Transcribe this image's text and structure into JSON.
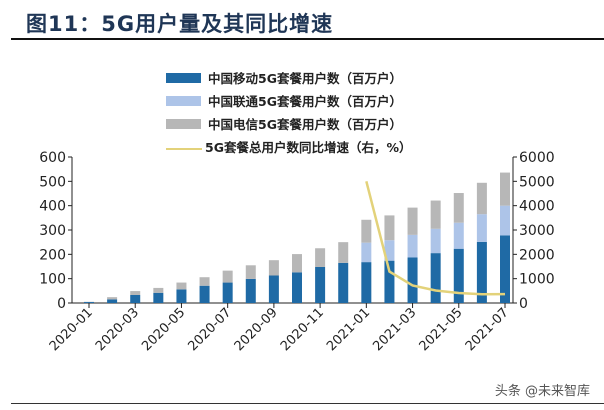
{
  "title": "图11：5G用户量及其同比增速",
  "watermark": "头条 @未来智库",
  "chart_data": {
    "type": "bar",
    "stacked": true,
    "categories": [
      "2020-01",
      "2020-02",
      "2020-03",
      "2020-04",
      "2020-05",
      "2020-06",
      "2020-07",
      "2020-08",
      "2020-09",
      "2020-10",
      "2020-11",
      "2020-12",
      "2021-01",
      "2021-02",
      "2021-03",
      "2021-04",
      "2021-05",
      "2021-06",
      "2021-07"
    ],
    "x_tick_labels": [
      "2020-01",
      "2020-03",
      "2020-05",
      "2020-07",
      "2020-09",
      "2020-11",
      "2021-01",
      "2021-03",
      "2021-05",
      "2021-07"
    ],
    "series": [
      {
        "name": "中国移动5G套餐用户数（百万户）",
        "color": "#1f6aa5",
        "axis": "left",
        "values": [
          4,
          15,
          33,
          42,
          56,
          71,
          84,
          99,
          113,
          126,
          148,
          165,
          168,
          174,
          187,
          205,
          223,
          251,
          278
        ]
      },
      {
        "name": "中国联通5G套餐用户数（百万户）",
        "color": "#adc4e8",
        "axis": "left",
        "values": [
          0,
          0,
          0,
          0,
          0,
          0,
          0,
          0,
          0,
          0,
          0,
          0,
          80,
          84,
          93,
          100,
          107,
          114,
          122
        ]
      },
      {
        "name": "中国电信5G套餐用户数（百万户）",
        "color": "#b7b7b7",
        "axis": "left",
        "values": [
          1,
          9,
          16,
          20,
          28,
          35,
          49,
          56,
          63,
          75,
          77,
          85,
          94,
          102,
          112,
          116,
          122,
          129,
          136
        ]
      },
      {
        "name": "5G套餐总用户数同比增速（右，%）",
        "type": "line",
        "color": "#e3d27a",
        "axis": "right",
        "values": [
          null,
          null,
          null,
          null,
          null,
          null,
          null,
          null,
          null,
          null,
          null,
          null,
          5000,
          1290,
          720,
          515,
          410,
          360,
          365
        ]
      }
    ],
    "y_left": {
      "min": 0,
      "max": 600,
      "ticks": [
        0,
        100,
        200,
        300,
        400,
        500,
        600
      ]
    },
    "y_right": {
      "min": 0,
      "max": 6000,
      "ticks": [
        0,
        1000,
        2000,
        3000,
        4000,
        5000,
        6000
      ]
    },
    "legend_position": "top",
    "grid": false
  }
}
